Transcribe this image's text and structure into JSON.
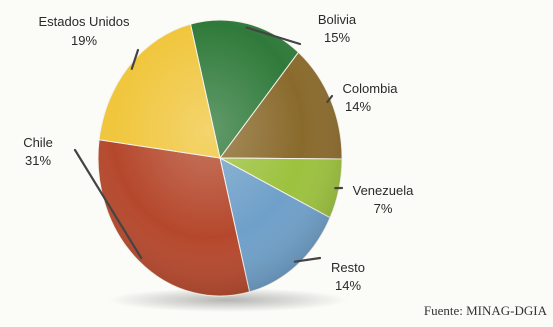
{
  "chart_data": {
    "type": "pie",
    "title": "",
    "slices": [
      {
        "label": "Bolivia",
        "value": 15,
        "pct_label": "15%",
        "color": "#2f7a3a"
      },
      {
        "label": "Colombia",
        "value": 14,
        "pct_label": "14%",
        "color": "#8a6a2c"
      },
      {
        "label": "Venezuela",
        "value": 7,
        "pct_label": "7%",
        "color": "#9cc23e"
      },
      {
        "label": "Resto",
        "value": 14,
        "pct_label": "14%",
        "color": "#6fa0c9"
      },
      {
        "label": "Chile",
        "value": 31,
        "pct_label": "31%",
        "color": "#b5482c"
      },
      {
        "label": "Estados Unidos",
        "value": 19,
        "pct_label": "19%",
        "color": "#f0c63c"
      }
    ]
  },
  "source": "Fuente: MINAG-DGIA"
}
